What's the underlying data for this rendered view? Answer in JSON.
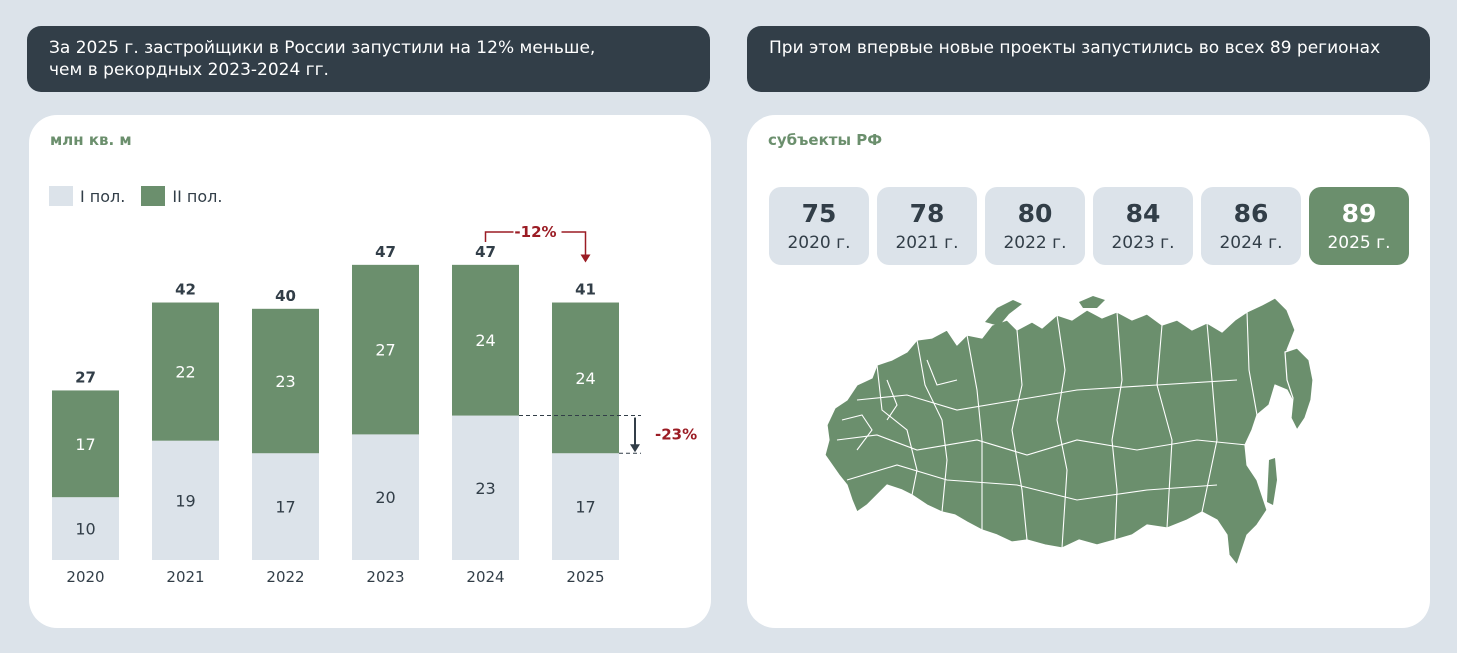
{
  "banners": {
    "left_line1": "За 2025 г. застройщики в России запустили на 12% меньше,",
    "left_line2": "чем в рекордных 2023-2024 гг.",
    "right": "При этом впервые новые проекты запустились во всех 89 регионах"
  },
  "colors": {
    "first_half": "#dce3ea",
    "second_half": "#6b8f6d",
    "text_dark": "#323e48",
    "accent_red": "#9b1c24"
  },
  "left_card": {
    "unit_label": "млн кв. м",
    "legend": [
      "I пол.",
      "II пол."
    ]
  },
  "chart_data": {
    "type": "bar",
    "stacked": true,
    "categories": [
      "2020",
      "2021",
      "2022",
      "2023",
      "2024",
      "2025"
    ],
    "series": [
      {
        "name": "I пол.",
        "values": [
          10,
          19,
          17,
          20,
          23,
          17
        ]
      },
      {
        "name": "II пол.",
        "values": [
          17,
          22,
          23,
          27,
          24,
          24
        ]
      }
    ],
    "totals": [
      27,
      42,
      40,
      47,
      47,
      41
    ],
    "title": "",
    "ylabel": "млн кв. м",
    "ylim": [
      0,
      50
    ],
    "annotations": [
      {
        "text": "-12%",
        "from": "2024",
        "to": "2025",
        "type": "total-change"
      },
      {
        "text": "-23%",
        "from": "2024",
        "to": "2025",
        "type": "first-half-change"
      }
    ]
  },
  "right_card": {
    "title": "субъекты РФ",
    "tiles": [
      {
        "value": "75",
        "year": "2020 г."
      },
      {
        "value": "78",
        "year": "2021 г."
      },
      {
        "value": "80",
        "year": "2022 г."
      },
      {
        "value": "84",
        "year": "2023 г."
      },
      {
        "value": "86",
        "year": "2024 г."
      },
      {
        "value": "89",
        "year": "2025 г."
      }
    ],
    "map_icon": "russia-map-icon"
  }
}
